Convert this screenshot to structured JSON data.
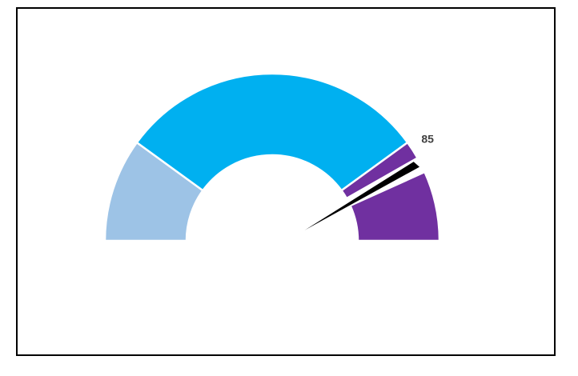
{
  "chart_data": {
    "type": "gauge",
    "range": [
      0,
      100
    ],
    "bands": [
      {
        "from": 0,
        "to": 20,
        "color": "#9DC3E6"
      },
      {
        "from": 20,
        "to": 80,
        "color": "#00B0F0"
      },
      {
        "from": 80,
        "to": 100,
        "color": "#7030A0"
      }
    ],
    "pointer": {
      "value": 85,
      "label": "85",
      "color": "#000000"
    },
    "title": "",
    "legend": "none",
    "grid": false
  }
}
